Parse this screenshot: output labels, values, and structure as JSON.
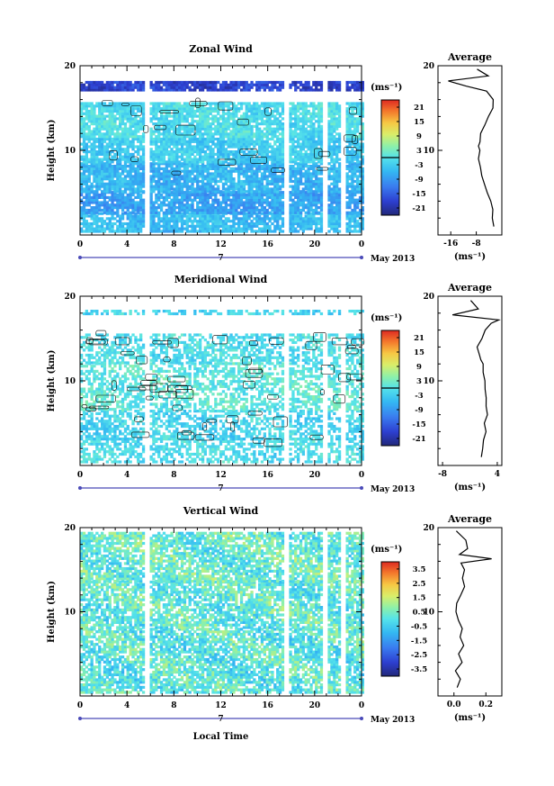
{
  "chart_data": [
    {
      "type": "heatmap",
      "title": "Zonal Wind",
      "ylabel": "Height (km)",
      "ylim": [
        0,
        20
      ],
      "y_ticks": [
        "10",
        "20"
      ],
      "xlim": [
        0,
        24
      ],
      "x_ticks": [
        "0",
        "4",
        "8",
        "12",
        "16",
        "20",
        "0"
      ],
      "date_marker": "7",
      "date_label": "May 2013",
      "colorbar": {
        "unit": "(ms⁻¹)",
        "ticks": [
          "21",
          "15",
          "9",
          "3",
          "-3",
          "-9",
          "-15",
          "-21"
        ],
        "range": [
          -24,
          24
        ],
        "zero_contour_value": 0
      },
      "field": {
        "wind_rows_km": [
          {
            "y0": 0.3,
            "y1": 2.5,
            "value": -5
          },
          {
            "y0": 2.5,
            "y1": 5.0,
            "value": -8
          },
          {
            "y0": 5.0,
            "y1": 8.5,
            "value": -6
          },
          {
            "y0": 8.5,
            "y1": 11.5,
            "value": -3
          },
          {
            "y0": 11.5,
            "y1": 15.5,
            "value": -1
          },
          {
            "y0": 17.0,
            "y1": 18.0,
            "value": -18
          }
        ],
        "data_gaps_hours": [
          {
            "x0": 5.5,
            "x1": 5.9
          },
          {
            "x0": 17.4,
            "x1": 17.8
          },
          {
            "x0": 20.8,
            "x1": 21.0
          },
          {
            "x0": 22.3,
            "x1": 22.6
          }
        ]
      },
      "average_profile": {
        "title": "Average",
        "xlabel": "(ms⁻¹)",
        "x_ticks": [
          "-16",
          "-8"
        ],
        "xlim": [
          -20,
          0
        ],
        "y_ticks": [
          "10",
          "20"
        ],
        "x": [
          -2.5,
          -3.0,
          -2.8,
          -3.5,
          -4.5,
          -5.5,
          -6.2,
          -6.8,
          -7.2,
          -7.0,
          -7.2,
          -7.0,
          -6.5,
          -5.5,
          -4.0,
          -3.0,
          -2.5,
          -5.0,
          -11.0,
          -17.0,
          -4.0,
          -8.0
        ],
        "y": [
          1.0,
          2.0,
          3.0,
          4.0,
          5.0,
          6.0,
          7.0,
          8.0,
          9.0,
          10.0,
          10.5,
          11.0,
          12.0,
          13.0,
          14.0,
          15.0,
          16.0,
          17.0,
          17.6,
          18.2,
          18.8,
          19.6
        ]
      }
    },
    {
      "type": "heatmap",
      "title": "Meridional Wind",
      "ylabel": "Height (km)",
      "ylim": [
        0,
        20
      ],
      "y_ticks": [
        "10",
        "20"
      ],
      "xlim": [
        0,
        24
      ],
      "x_ticks": [
        "0",
        "4",
        "8",
        "12",
        "16",
        "20",
        "0"
      ],
      "date_marker": "7",
      "date_label": "May 2013",
      "colorbar": {
        "unit": "(ms⁻¹)",
        "ticks": [
          "21",
          "15",
          "9",
          "3",
          "-3",
          "-9",
          "-15",
          "-21"
        ],
        "range": [
          -24,
          24
        ],
        "zero_contour_value": 0
      },
      "field": {
        "wind_rows_km": [
          {
            "y0": 0.3,
            "y1": 3.0,
            "value": -1
          },
          {
            "y0": 3.0,
            "y1": 6.5,
            "value": -2
          },
          {
            "y0": 6.5,
            "y1": 12.0,
            "value": 1
          },
          {
            "y0": 12.0,
            "y1": 15.5,
            "value": -1
          },
          {
            "y0": 17.8,
            "y1": 18.4,
            "value": -2
          }
        ],
        "data_gaps_hours": [
          {
            "x0": 5.5,
            "x1": 5.9
          },
          {
            "x0": 17.4,
            "x1": 17.8
          },
          {
            "x0": 20.8,
            "x1": 21.0
          },
          {
            "x0": 22.3,
            "x1": 22.6
          }
        ]
      },
      "average_profile": {
        "title": "Average",
        "xlabel": "(ms⁻¹)",
        "x_ticks": [
          "-8",
          "4"
        ],
        "xlim": [
          -9,
          5
        ],
        "y_ticks": [
          "10",
          "20"
        ],
        "x": [
          0.5,
          0.8,
          1.0,
          1.5,
          1.2,
          1.8,
          1.6,
          1.5,
          1.4,
          1.2,
          1.0,
          0.8,
          0.5,
          0.0,
          -0.3,
          0.5,
          1.5,
          2.5,
          4.5,
          -6.0,
          0.0,
          -2.0
        ],
        "y": [
          1.0,
          2.0,
          3.0,
          4.0,
          5.0,
          6.0,
          7.0,
          8.0,
          9.0,
          10.0,
          11.0,
          12.0,
          12.5,
          13.0,
          14.0,
          15.0,
          16.0,
          16.8,
          17.2,
          17.8,
          18.5,
          19.5
        ]
      }
    },
    {
      "type": "heatmap",
      "title": "Vertical Wind",
      "ylabel": "Height (km)",
      "xlabel": "Local Time",
      "ylim": [
        0,
        20
      ],
      "y_ticks": [
        "10",
        "20"
      ],
      "xlim": [
        0,
        24
      ],
      "x_ticks": [
        "0",
        "4",
        "8",
        "12",
        "16",
        "20",
        "0"
      ],
      "date_marker": "7",
      "date_label": "May 2013",
      "colorbar": {
        "unit": "(ms⁻¹)",
        "ticks": [
          "3.5",
          "2.5",
          "1.5",
          "0.5",
          "-0.5",
          "-1.5",
          "-2.5",
          "-3.5"
        ],
        "range": [
          -4,
          4
        ]
      },
      "field": {
        "wind_rows_km": [
          {
            "y0": 0.3,
            "y1": 8.0,
            "value": 0.1
          },
          {
            "y0": 8.0,
            "y1": 13.5,
            "value": 0.2
          },
          {
            "y0": 13.5,
            "y1": 19.3,
            "value": 0.3
          }
        ],
        "data_gaps_hours": [
          {
            "x0": 5.5,
            "x1": 5.9
          },
          {
            "x0": 17.4,
            "x1": 17.8
          },
          {
            "x0": 20.8,
            "x1": 21.0
          },
          {
            "x0": 22.3,
            "x1": 22.6
          }
        ]
      },
      "average_profile": {
        "title": "Average",
        "xlabel": "(ms⁻¹)",
        "x_ticks": [
          "0.0",
          "0.2"
        ],
        "xlim": [
          -0.1,
          0.3
        ],
        "y_ticks": [
          "10",
          "20"
        ],
        "x": [
          0.02,
          0.04,
          0.01,
          0.05,
          0.03,
          0.06,
          0.04,
          0.05,
          0.03,
          0.01,
          0.02,
          0.04,
          0.07,
          0.05,
          0.07,
          0.04,
          0.24,
          0.03,
          0.09,
          0.07,
          0.02
        ],
        "y": [
          1.0,
          2.0,
          3.0,
          4.0,
          5.0,
          6.0,
          7.0,
          8.0,
          9.0,
          10.0,
          11.0,
          12.0,
          13.0,
          14.0,
          15.0,
          15.8,
          16.3,
          16.8,
          17.5,
          18.5,
          19.6
        ]
      }
    }
  ]
}
